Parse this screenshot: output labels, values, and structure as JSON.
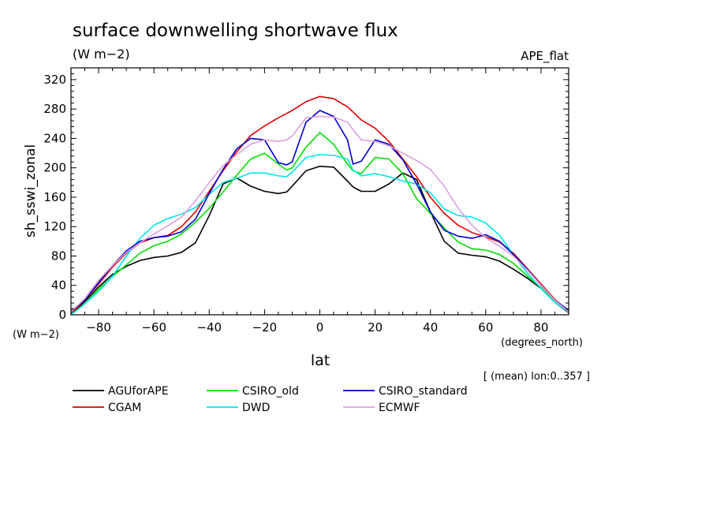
{
  "chart_data": {
    "type": "line",
    "title": "surface downwelling shortwave flux",
    "units": "(W m−2)",
    "dataset": "APE_flat",
    "ylabel": "sh_sswi_zonal",
    "yunits": "(W m−2)",
    "xlabel": "lat",
    "xunits": "(degrees_north)",
    "note": "[ (mean) lon:0..357 ]",
    "xlim": [
      -90,
      90
    ],
    "ylim": [
      0,
      336
    ],
    "xticks": [
      -80,
      -60,
      -40,
      -20,
      0,
      20,
      40,
      60,
      80
    ],
    "xtick_labels": [
      "−80",
      "−60",
      "−40",
      "−20",
      "0",
      "20",
      "40",
      "60",
      "80"
    ],
    "yticks": [
      0,
      40,
      80,
      120,
      160,
      200,
      240,
      280,
      320
    ],
    "ytick_labels": [
      "0",
      "40",
      "80",
      "120",
      "160",
      "200",
      "240",
      "280",
      "320"
    ],
    "x": [
      -90,
      -85,
      -80,
      -75,
      -70,
      -65,
      -60,
      -55,
      -50,
      -45,
      -40,
      -35,
      -30,
      -25,
      -20,
      -15,
      -12,
      -10,
      -5,
      0,
      5,
      10,
      12,
      15,
      20,
      25,
      30,
      35,
      40,
      45,
      50,
      55,
      60,
      65,
      70,
      75,
      80,
      85,
      90
    ],
    "series": [
      {
        "name": "AGUforAPE",
        "color": "#000000",
        "values": [
          0,
          18,
          38,
          55,
          66,
          74,
          78,
          80,
          85,
          98,
          135,
          178,
          186,
          175,
          168,
          165,
          167,
          175,
          196,
          202,
          201,
          182,
          174,
          168,
          168,
          178,
          193,
          184,
          140,
          100,
          84,
          81,
          79,
          73,
          62,
          50,
          36,
          17,
          3
        ]
      },
      {
        "name": "CGAM",
        "color": "#e00000",
        "values": [
          2,
          20,
          42,
          65,
          84,
          98,
          105,
          108,
          120,
          140,
          168,
          196,
          222,
          244,
          257,
          268,
          274,
          278,
          290,
          297,
          294,
          283,
          276,
          265,
          254,
          236,
          212,
          188,
          160,
          138,
          122,
          112,
          106,
          99,
          84,
          63,
          42,
          21,
          5
        ]
      },
      {
        "name": "CSIRO_old",
        "color": "#00dd00",
        "values": [
          0,
          15,
          35,
          52,
          68,
          84,
          94,
          100,
          110,
          126,
          145,
          167,
          190,
          212,
          220,
          205,
          197,
          200,
          228,
          248,
          232,
          205,
          196,
          192,
          214,
          212,
          192,
          158,
          138,
          118,
          99,
          90,
          88,
          82,
          70,
          53,
          37,
          18,
          4
        ]
      },
      {
        "name": "DWD",
        "color": "#00e8e8",
        "values": [
          0,
          15,
          32,
          52,
          80,
          104,
          122,
          131,
          137,
          146,
          164,
          180,
          186,
          193,
          193,
          189,
          188,
          194,
          214,
          218,
          217,
          212,
          197,
          189,
          192,
          188,
          182,
          178,
          166,
          144,
          135,
          133,
          125,
          108,
          82,
          57,
          36,
          17,
          4
        ]
      },
      {
        "name": "CSIRO_standard",
        "color": "#0000d0",
        "values": [
          5,
          20,
          44,
          67,
          87,
          100,
          105,
          107,
          113,
          130,
          165,
          198,
          226,
          240,
          238,
          207,
          204,
          208,
          262,
          278,
          270,
          238,
          205,
          209,
          238,
          232,
          211,
          178,
          140,
          115,
          107,
          104,
          109,
          100,
          82,
          62,
          40,
          20,
          6
        ]
      },
      {
        "name": "ECMWF",
        "color": "#dda0dd",
        "values": [
          4,
          22,
          47,
          67,
          85,
          98,
          110,
          121,
          133,
          155,
          180,
          203,
          218,
          232,
          238,
          236,
          238,
          243,
          268,
          270,
          269,
          262,
          252,
          238,
          236,
          230,
          220,
          210,
          198,
          175,
          145,
          122,
          105,
          93,
          80,
          61,
          40,
          20,
          4
        ]
      }
    ],
    "legend_placement": "below",
    "grid": false
  }
}
